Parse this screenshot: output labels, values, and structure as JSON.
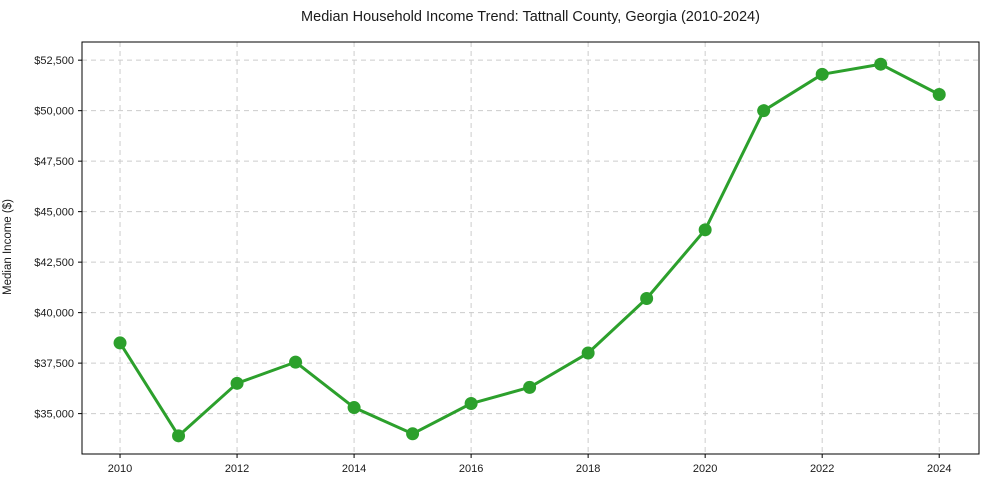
{
  "chart_data": {
    "type": "line",
    "title": "Median Household Income Trend: Tattnall County, Georgia (2010-2024)",
    "xlabel": "",
    "ylabel": "Median Income ($)",
    "x": [
      2010,
      2011,
      2012,
      2013,
      2014,
      2015,
      2016,
      2017,
      2018,
      2019,
      2020,
      2021,
      2022,
      2023,
      2024
    ],
    "values": [
      38500,
      33900,
      36500,
      37550,
      35300,
      34000,
      35500,
      36300,
      38000,
      40700,
      44100,
      50000,
      51800,
      52300,
      50800
    ],
    "xlim": [
      2009.35,
      2024.68
    ],
    "ylim": [
      33000,
      53400
    ],
    "x_ticks": [
      2010,
      2012,
      2014,
      2016,
      2018,
      2020,
      2022,
      2024
    ],
    "y_ticks": [
      35000,
      37500,
      40000,
      42500,
      45000,
      47500,
      50000,
      52500
    ],
    "y_tick_prefix": "$",
    "grid": true,
    "legend_position": "none",
    "line_color": "#2ca02c",
    "marker": "circle"
  },
  "style": {
    "figure_background": "#ffffff",
    "grid_color": "#cccccc",
    "axis_color": "#000000",
    "text_color": "#1a1a1a"
  }
}
